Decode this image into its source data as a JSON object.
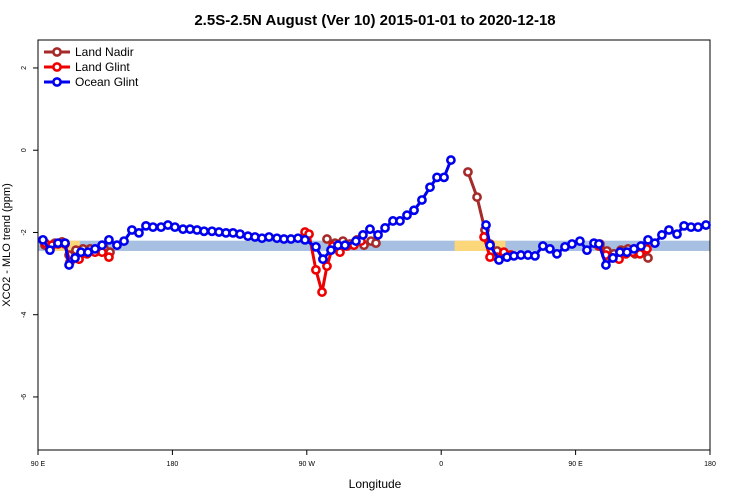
{
  "chart_data": {
    "type": "line",
    "title": "2.5S-2.5N August (Ver 10)   2015-01-01 to 2020-12-18",
    "xlabel": "Longitude",
    "ylabel": "XCO2 - MLO trend (ppm)",
    "xlim": [
      90,
      540
    ],
    "ylim": [
      -7.29,
      2.68
    ],
    "xticks": [
      {
        "value": 90,
        "label": "90 E"
      },
      180,
      {
        "value": 270,
        "label": "90 W"
      },
      {
        "value": 360,
        "label": "0"
      },
      {
        "value": 450,
        "label": "90 E"
      },
      {
        "value": 540,
        "label": "180"
      }
    ],
    "yticks": [
      2,
      0,
      -2,
      -4,
      -6
    ],
    "legend": "upper left",
    "bands": [
      {
        "color": "#a7bfe0",
        "xlim": [
          90,
          540
        ],
        "ylim": [
          -2.45,
          -2.2
        ]
      },
      {
        "color": "#fcd77a",
        "xlim": [
          94.7,
          118
        ],
        "ylim": [
          -2.45,
          -2.2
        ]
      },
      {
        "color": "#fcd77a",
        "xlim": [
          369,
          403
        ],
        "ylim": [
          -2.45,
          -2.2
        ]
      }
    ],
    "series": [
      {
        "name": "Land Nadir",
        "color": "#a52a2a",
        "x": [
          94.7,
          101.4,
          106.1,
          110.8,
          115.4,
          120.1,
          124.8,
          129.5,
          134.2,
          138.2,
          null,
          283.5,
          288.9,
          294.2,
          298.9,
          303.6,
          308.3,
          313.0,
          316.3,
          null,
          377.9,
          384.0,
          389.3,
          392.7,
          397.4,
          null,
          466.3,
          471.0,
          475.7,
          480.4,
          485.1,
          489.8,
          493.8,
          498.5
        ],
        "values": [
          -2.31,
          -2.26,
          -2.23,
          -2.55,
          -2.43,
          -2.4,
          -2.4,
          -2.43,
          -2.38,
          -2.48,
          null,
          -2.16,
          -2.26,
          -2.21,
          -2.28,
          -2.18,
          -2.31,
          -2.21,
          -2.26,
          null,
          -0.53,
          -1.14,
          -1.94,
          -2.28,
          -2.45,
          null,
          -2.28,
          -2.45,
          -2.52,
          -2.43,
          -2.4,
          -2.52,
          -2.43,
          -2.62
        ]
      },
      {
        "name": "Land Glint",
        "color": "#ee0000",
        "x": [
          94.7,
          99.4,
          103.4,
          108.1,
          111.4,
          117.5,
          122.8,
          128.2,
          132.9,
          137.5,
          null,
          268.8,
          271.5,
          276.1,
          280.2,
          283.5,
          287.5,
          292.2,
          296.9,
          301.6,
          306.3,
          null,
          388.7,
          392.7,
          397.4,
          402.0,
          406.7,
          null,
          465.6,
          470.3,
          474.4,
          479.1,
          483.7,
          488.4,
          493.1,
          497.8
        ],
        "values": [
          -2.26,
          -2.31,
          -2.28,
          -2.28,
          -2.72,
          -2.65,
          -2.52,
          -2.48,
          -2.48,
          -2.6,
          null,
          -1.99,
          -2.04,
          -2.91,
          -3.45,
          -2.82,
          -2.33,
          -2.48,
          -2.33,
          -2.31,
          -2.21,
          null,
          -2.11,
          -2.6,
          -2.6,
          -2.48,
          -2.55,
          null,
          -2.33,
          -2.55,
          -2.62,
          -2.65,
          -2.52,
          -2.48,
          -2.52,
          -2.4
        ]
      },
      {
        "name": "Ocean Glint",
        "color": "#0000ee",
        "x": [
          93.3,
          98.0,
          103.4,
          108.1,
          110.8,
          114.8,
          118.8,
          123.5,
          128.2,
          132.9,
          137.5,
          142.9,
          147.6,
          152.9,
          157.6,
          162.3,
          167.0,
          172.4,
          177.0,
          181.7,
          187.1,
          191.8,
          196.5,
          201.2,
          206.5,
          211.2,
          215.9,
          220.6,
          225.3,
          230.6,
          235.3,
          240.0,
          244.7,
          250.0,
          254.7,
          259.4,
          264.1,
          268.8,
          276.1,
          280.8,
          286.2,
          290.9,
          295.6,
          302.9,
          307.6,
          312.3,
          317.7,
          322.4,
          327.7,
          332.4,
          337.1,
          341.8,
          347.1,
          352.5,
          357.2,
          361.9,
          366.5,
          null,
          390.0,
          392.7,
          398.7,
          404.0,
          408.7,
          413.4,
          418.1,
          422.8,
          428.1,
          432.8,
          437.5,
          442.9,
          447.6,
          452.9,
          457.6,
          462.3,
          465.6,
          470.3,
          475.0,
          479.7,
          484.4,
          489.1,
          493.8,
          498.5,
          503.1,
          507.8,
          512.5,
          517.9,
          522.6,
          527.3,
          532.0,
          537.3
        ],
        "values": [
          -2.18,
          -2.43,
          -2.26,
          -2.26,
          -2.79,
          -2.62,
          -2.48,
          -2.48,
          -2.4,
          -2.31,
          -2.18,
          -2.31,
          -2.21,
          -1.94,
          -2.01,
          -1.84,
          -1.87,
          -1.87,
          -1.82,
          -1.87,
          -1.92,
          -1.92,
          -1.94,
          -1.97,
          -1.97,
          -1.99,
          -2.01,
          -2.01,
          -2.04,
          -2.09,
          -2.11,
          -2.14,
          -2.11,
          -2.14,
          -2.16,
          -2.16,
          -2.14,
          -2.18,
          -2.35,
          -2.65,
          -2.43,
          -2.31,
          -2.31,
          -2.21,
          -2.06,
          -1.92,
          -2.06,
          -1.89,
          -1.72,
          -1.72,
          -1.58,
          -1.46,
          -1.21,
          -0.9,
          -0.66,
          -0.66,
          -0.24,
          null,
          -1.82,
          -2.31,
          -2.67,
          -2.6,
          -2.57,
          -2.55,
          -2.55,
          -2.57,
          -2.33,
          -2.4,
          -2.52,
          -2.35,
          -2.28,
          -2.21,
          -2.43,
          -2.26,
          -2.28,
          -2.79,
          -2.62,
          -2.48,
          -2.48,
          -2.4,
          -2.33,
          -2.18,
          -2.26,
          -2.06,
          -1.94,
          -2.04,
          -1.84,
          -1.87,
          -1.87,
          -1.82
        ]
      }
    ]
  }
}
